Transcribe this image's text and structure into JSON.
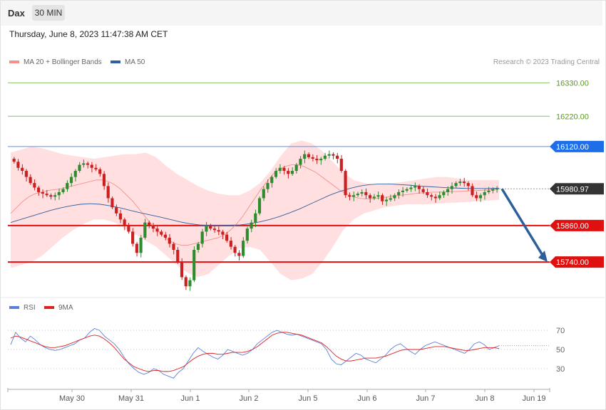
{
  "header": {
    "symbol": "Dax",
    "timeframe": "30 MIN",
    "datetime": "Thursday, June 8, 2023 11:47:38 AM CET"
  },
  "legend": {
    "items": [
      {
        "label": "MA 20 + Bollinger Bands",
        "color": "#f4908c"
      },
      {
        "label": "MA 50",
        "color": "#2f5f9f"
      }
    ],
    "credit": "Research © 2023 Trading Central"
  },
  "rsi_legend": {
    "items": [
      {
        "label": "RSI",
        "color": "#5b7fd6"
      },
      {
        "label": "9MA",
        "color": "#e02020"
      }
    ]
  },
  "colors": {
    "up_candle": "#2e8b2e",
    "down_candle": "#cc1f1f",
    "support": "#e01010",
    "resistance": "#5a8fe8",
    "target": "#8ac268",
    "bands": "#ffd4d4",
    "arrow": "#2e5f9a"
  },
  "chart_data": [
    {
      "type": "candlestick",
      "title": "",
      "x_labels": [
        "May 30",
        "May 31",
        "Jun 1",
        "Jun 2",
        "Jun 5",
        "Jun 6",
        "Jun 7",
        "Jun 8",
        "Jun 19"
      ],
      "ylim": [
        15630,
        16380
      ],
      "levels": [
        {
          "value": 16330,
          "label": "16330.00",
          "kind": "target"
        },
        {
          "value": 16220,
          "label": "16220.00",
          "kind": "target"
        },
        {
          "value": 16120,
          "label": "16120.00",
          "kind": "resistance"
        },
        {
          "value": 15980.97,
          "label": "15980.97",
          "kind": "last"
        },
        {
          "value": 15860,
          "label": "15860.00",
          "kind": "support"
        },
        {
          "value": 15740,
          "label": "15740.00",
          "kind": "support"
        }
      ],
      "close_series": [
        16070,
        16050,
        16040,
        16020,
        16000,
        15985,
        15970,
        15965,
        15960,
        15955,
        15960,
        15970,
        15980,
        16000,
        16020,
        16040,
        16060,
        16065,
        16060,
        16050,
        16045,
        16030,
        15990,
        15950,
        15920,
        15900,
        15880,
        15860,
        15840,
        15800,
        15770,
        15820,
        15870,
        15860,
        15850,
        15840,
        15830,
        15820,
        15800,
        15780,
        15740,
        15690,
        15660,
        15680,
        15780,
        15800,
        15840,
        15860,
        15850,
        15845,
        15840,
        15830,
        15810,
        15790,
        15770,
        15760,
        15810,
        15850,
        15870,
        15900,
        15950,
        15980,
        16000,
        16020,
        16040,
        16050,
        16040,
        16030,
        16040,
        16060,
        16080,
        16095,
        16085,
        16080,
        16075,
        16080,
        16090,
        16095,
        16090,
        16080,
        16040,
        15960,
        15955,
        15960,
        15965,
        15970,
        15960,
        15950,
        15955,
        15960,
        15940,
        15945,
        15950,
        15960,
        15970,
        15975,
        15980,
        15985,
        15990,
        15980,
        15970,
        15960,
        15955,
        15950,
        15960,
        15970,
        15980,
        15990,
        16000,
        16005,
        16000,
        15990,
        15960,
        15950,
        15960,
        15970,
        15975,
        15980,
        15981
      ],
      "ma20": [
        15900,
        15920,
        15940,
        15955,
        15965,
        15970,
        15975,
        15978,
        15980,
        15985,
        15990,
        15995,
        16000,
        16005,
        16010,
        16010,
        16005,
        15995,
        15980,
        15960,
        15940,
        15915,
        15890,
        15865,
        15845,
        15825,
        15810,
        15800,
        15795,
        15795,
        15800,
        15805,
        15810,
        15815,
        15820,
        15830,
        15845,
        15865,
        15890,
        15920,
        15950,
        15980,
        16005,
        16030,
        16045,
        16055,
        16060,
        16060,
        16055,
        16045,
        16035,
        16020,
        16005,
        15990,
        15975,
        15965,
        15955,
        15950,
        15948,
        15948,
        15950,
        15952,
        15955,
        15958,
        15960,
        15962,
        15965,
        15967,
        15968,
        15970,
        15970,
        15971,
        15972,
        15972,
        15973,
        15974,
        15975,
        15976,
        15977,
        15978,
        15980
      ],
      "ma50": [
        15870,
        15880,
        15890,
        15900,
        15910,
        15918,
        15925,
        15930,
        15932,
        15930,
        15925,
        15918,
        15910,
        15902,
        15895,
        15888,
        15880,
        15872,
        15866,
        15862,
        15860,
        15860,
        15861,
        15862,
        15866,
        15872,
        15880,
        15890,
        15902,
        15915,
        15930,
        15945,
        15960,
        15972,
        15982,
        15990,
        15995,
        15997,
        15997,
        15995,
        15993,
        15990,
        15988,
        15986,
        15984,
        15983,
        15982,
        15982,
        15982,
        15983
      ],
      "bb_upper": [
        16100,
        16110,
        16120,
        16115,
        16105,
        16095,
        16090,
        16085,
        16080,
        16085,
        16090,
        16095,
        16095,
        16100,
        16085,
        16055,
        16030,
        16010,
        15990,
        15975,
        15965,
        15960,
        15960,
        15975,
        16000,
        16040,
        16090,
        16130,
        16140,
        16130,
        16105,
        16070,
        16035,
        16010,
        16000,
        15995,
        15995,
        16000,
        16005,
        16010,
        16015,
        16020,
        16020,
        16015,
        16010,
        16010,
        16010,
        16010
      ],
      "bb_lower": [
        15720,
        15730,
        15740,
        15760,
        15790,
        15820,
        15845,
        15865,
        15880,
        15880,
        15870,
        15850,
        15830,
        15810,
        15790,
        15760,
        15730,
        15705,
        15690,
        15700,
        15730,
        15760,
        15785,
        15790,
        15780,
        15740,
        15700,
        15680,
        15685,
        15700,
        15740,
        15790,
        15845,
        15880,
        15900,
        15910,
        15920,
        15925,
        15930,
        15930,
        15930,
        15932,
        15934,
        15936,
        15938,
        15940,
        15942,
        15945
      ],
      "forecast": {
        "from": 15980.97,
        "to": 15740
      }
    },
    {
      "type": "line",
      "title": "",
      "ylim": [
        15,
        85
      ],
      "ticks": [
        70,
        50,
        30
      ],
      "series": [
        {
          "name": "RSI",
          "values": [
            55,
            68,
            62,
            58,
            64,
            60,
            55,
            52,
            50,
            49,
            50,
            52,
            54,
            56,
            60,
            62,
            68,
            72,
            70,
            64,
            60,
            56,
            50,
            42,
            35,
            30,
            26,
            24,
            26,
            30,
            28,
            24,
            22,
            20,
            26,
            30,
            38,
            46,
            52,
            48,
            45,
            42,
            40,
            44,
            50,
            48,
            46,
            44,
            46,
            50,
            56,
            60,
            64,
            68,
            70,
            68,
            66,
            65,
            66,
            64,
            62,
            60,
            58,
            56,
            50,
            40,
            35,
            34,
            38,
            42,
            46,
            44,
            40,
            38,
            36,
            40,
            44,
            50,
            54,
            56,
            52,
            48,
            45,
            50,
            54,
            56,
            58,
            56,
            54,
            52,
            50,
            48,
            46,
            50,
            56,
            58,
            55,
            50,
            52,
            54
          ]
        },
        {
          "name": "9MA",
          "values": [
            62,
            64,
            63,
            61,
            59,
            57,
            55,
            53,
            52,
            52,
            53,
            54,
            56,
            58,
            60,
            62,
            64,
            65,
            64,
            61,
            57,
            52,
            46,
            40,
            36,
            32,
            30,
            28,
            27,
            28,
            28,
            27,
            27,
            28,
            30,
            32,
            36,
            40,
            43,
            45,
            46,
            46,
            45,
            45,
            46,
            47,
            47,
            47,
            48,
            50,
            53,
            57,
            61,
            65,
            67,
            68,
            68,
            67,
            66,
            65,
            63,
            61,
            59,
            57,
            53,
            48,
            43,
            40,
            38,
            38,
            39,
            40,
            41,
            41,
            41,
            42,
            43,
            45,
            47,
            49,
            50,
            50,
            50,
            50,
            51,
            52,
            53,
            53,
            53,
            52,
            51,
            50,
            49,
            49,
            50,
            51,
            52,
            52,
            52,
            51
          ]
        }
      ]
    }
  ]
}
